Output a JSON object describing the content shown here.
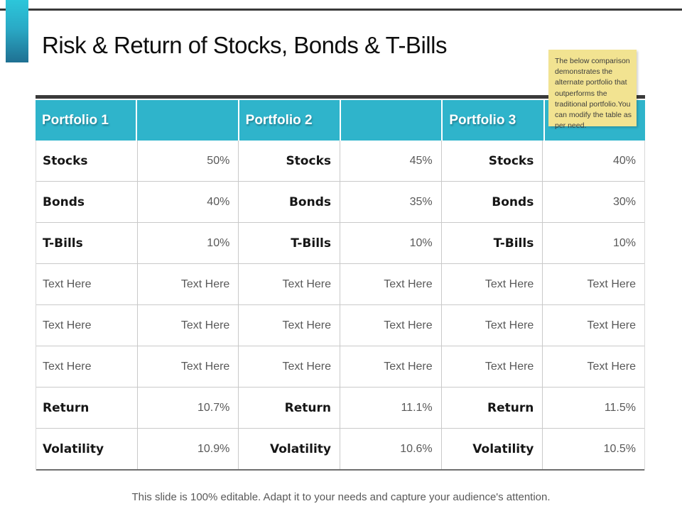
{
  "page": {
    "title": "Risk & Return of Stocks, Bonds & T-Bills",
    "footer": "This slide is 100% editable. Adapt it to your needs and capture your audience's attention."
  },
  "sticky_note": {
    "text": "The below comparison demonstrates the alternate portfolio that outperforms the traditional portfolio.You can modify the table as per need."
  },
  "table": {
    "headers": [
      {
        "label": "Portfolio 1"
      },
      {
        "label": ""
      },
      {
        "label": "Portfolio 2"
      },
      {
        "label": ""
      },
      {
        "label": "Portfolio 3"
      },
      {
        "label": ""
      }
    ],
    "rows": [
      {
        "type": "metric",
        "cells": [
          "Stocks",
          "50%",
          "Stocks",
          "45%",
          "Stocks",
          "40%"
        ]
      },
      {
        "type": "metric",
        "cells": [
          "Bonds",
          "40%",
          "Bonds",
          "35%",
          "Bonds",
          "30%"
        ]
      },
      {
        "type": "metric",
        "cells": [
          "T-Bills",
          "10%",
          "T-Bills",
          "10%",
          "T-Bills",
          "10%"
        ]
      },
      {
        "type": "placeholder",
        "cells": [
          "Text Here",
          "Text Here",
          "Text Here",
          "Text Here",
          "Text Here",
          "Text Here"
        ]
      },
      {
        "type": "placeholder",
        "cells": [
          "Text Here",
          "Text Here",
          "Text Here",
          "Text Here",
          "Text Here",
          "Text Here"
        ]
      },
      {
        "type": "placeholder",
        "cells": [
          "Text Here",
          "Text Here",
          "Text Here",
          "Text Here",
          "Text Here",
          "Text Here"
        ]
      },
      {
        "type": "metric",
        "cells": [
          "Return",
          "10.7%",
          "Return",
          "11.1%",
          "Return",
          "11.5%"
        ]
      },
      {
        "type": "metric",
        "cells": [
          "Volatility",
          "10.9%",
          "Volatility",
          "10.6%",
          "Volatility",
          "10.5%"
        ]
      }
    ]
  },
  "colors": {
    "header_teal": "#2fb4cb",
    "dark_rule": "#3a3a3a",
    "note_bg": "#f2e391",
    "value_text": "#595959",
    "accent_gradient_top": "#2cc6da",
    "accent_gradient_bottom": "#1f7092"
  }
}
